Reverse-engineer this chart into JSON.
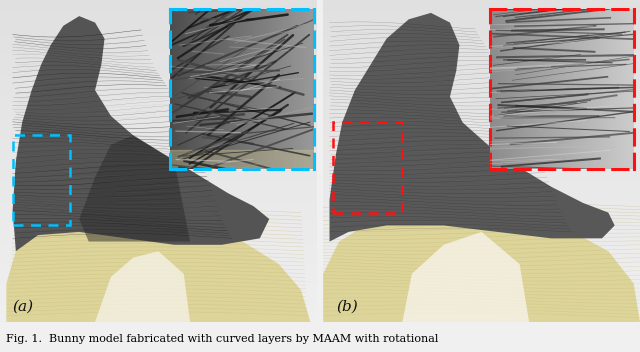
{
  "fig_width": 6.4,
  "fig_height": 3.52,
  "dpi": 100,
  "bg_color": "#f0f0f0",
  "caption": "Fig. 1.  Bunny model fabricated with curved layers by MAAM with rotational",
  "caption_fontsize": 8.0,
  "label_a": "(a)",
  "label_b": "(b)",
  "label_fontsize": 11,
  "cyan_color": "#00bfff",
  "red_color": "#ff1111",
  "panel_bg": "#d8d8d8",
  "support_color": "#e8dfa0",
  "support_edge": "#c8c080",
  "body_color_dark": "#4a4a4a",
  "body_color_mid": "#606060",
  "layer_color": "#222222",
  "white_area": "#f0ece0",
  "inset_bg_a": "#505050",
  "inset_bg_b": "#787878"
}
